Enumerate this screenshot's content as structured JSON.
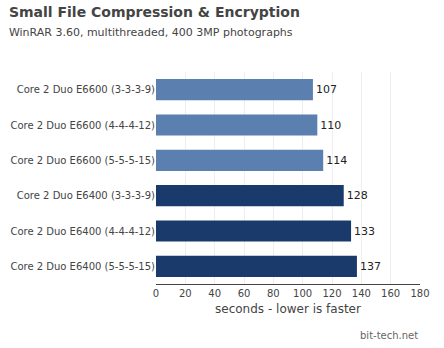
{
  "chart_data": {
    "type": "bar",
    "orientation": "horizontal",
    "title": "Small File Compression & Encryption",
    "subtitle": "WinRAR 3.60, multithreaded, 400 3MP photographs",
    "xlabel": "seconds - lower is faster",
    "annotations": [
      "bit-tech.net"
    ],
    "categories": [
      "Core 2 Duo E6600 (3-3-3-9)",
      "Core 2 Duo E6600 (4-4-4-12)",
      "Core 2 Duo E6600 (5-5-5-15)",
      "Core 2 Duo E6400 (3-3-3-9)",
      "Core 2 Duo E6400 (4-4-4-12)",
      "Core 2 Duo E6400 (5-5-5-15)"
    ],
    "values": [
      107,
      110,
      114,
      128,
      133,
      137
    ],
    "colors": [
      "#5b7fae",
      "#5b7fae",
      "#5b7fae",
      "#1a3a6b",
      "#1a3a6b",
      "#1a3a6b"
    ],
    "xlim": [
      0,
      180
    ],
    "xticks": [
      0,
      20,
      40,
      60,
      80,
      100,
      120,
      140,
      160,
      180
    ],
    "grid": true,
    "data_labels": true
  }
}
